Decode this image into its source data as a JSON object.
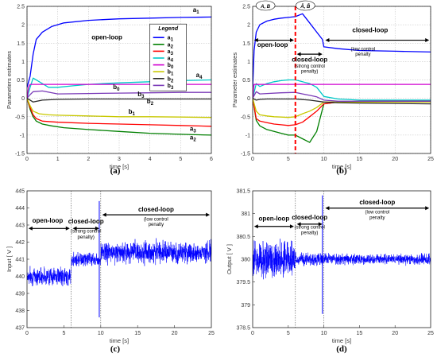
{
  "colors": {
    "a1": "#0000ff",
    "a2": "#007f00",
    "a3": "#ff0000",
    "a4": "#00c8c8",
    "b0": "#d000d0",
    "b1": "#c8c800",
    "b2": "#2a2a2a",
    "b3": "#7a3ab8",
    "signal": "#0000ff",
    "switch_line": "#ff0000"
  },
  "chart_data": [
    {
      "id": "a",
      "type": "line",
      "panel_label": "(a)",
      "xlabel": "time [s]",
      "ylabel": "Parameters estimates",
      "xlim": [
        0,
        6
      ],
      "ylim": [
        -1.5,
        2.5
      ],
      "xticks": [
        "0",
        "1",
        "2",
        "3",
        "4",
        "5",
        "6"
      ],
      "yticks": [
        "-1.5",
        "-1",
        "-0.5",
        "0",
        "0.5",
        "1",
        "1.5",
        "2",
        "2.5"
      ],
      "grid": true,
      "legend": {
        "title": "Legend",
        "placement": "top-right",
        "entries": [
          "a1",
          "a2",
          "a3",
          "a4",
          "b0",
          "b1",
          "b2",
          "b3"
        ]
      },
      "annotations": [
        {
          "text": "open-loop",
          "x": 2.6,
          "y": 1.6
        }
      ],
      "series": [
        {
          "name": "a1",
          "label": "a1",
          "label_at": [
            5.4,
            2.35
          ],
          "x": [
            0,
            0.1,
            0.2,
            0.3,
            0.5,
            0.8,
            1.2,
            2,
            3,
            4,
            5,
            6
          ],
          "y": [
            0.3,
            0.6,
            1.2,
            1.6,
            1.8,
            1.95,
            2.05,
            2.12,
            2.16,
            2.18,
            2.2,
            2.21
          ]
        },
        {
          "name": "a2",
          "label": "a2",
          "label_at": [
            5.3,
            -1.12
          ],
          "x": [
            0,
            0.1,
            0.2,
            0.3,
            0.5,
            0.8,
            1.2,
            2,
            3,
            4,
            5,
            6
          ],
          "y": [
            0,
            -0.3,
            -0.5,
            -0.62,
            -0.7,
            -0.75,
            -0.8,
            -0.85,
            -0.9,
            -0.95,
            -0.98,
            -1.0
          ]
        },
        {
          "name": "a3",
          "label": "a3",
          "label_at": [
            5.3,
            -0.88
          ],
          "x": [
            0,
            0.1,
            0.2,
            0.3,
            0.5,
            1,
            2,
            3,
            4,
            5,
            6
          ],
          "y": [
            0,
            -0.25,
            -0.45,
            -0.55,
            -0.62,
            -0.65,
            -0.68,
            -0.7,
            -0.72,
            -0.74,
            -0.76
          ]
        },
        {
          "name": "a4",
          "label": "a4",
          "label_at": [
            5.5,
            0.58
          ],
          "x": [
            0,
            0.1,
            0.2,
            0.4,
            0.7,
            1,
            1.5,
            2,
            3,
            4,
            5,
            6
          ],
          "y": [
            0,
            0.3,
            0.55,
            0.45,
            0.3,
            0.3,
            0.34,
            0.38,
            0.42,
            0.45,
            0.48,
            0.5
          ]
        },
        {
          "name": "b0",
          "label": "b0",
          "label_at": [
            2.8,
            0.25
          ],
          "x": [
            0,
            0.05,
            0.1,
            0.2,
            0.5,
            1,
            2,
            3,
            4,
            5,
            6
          ],
          "y": [
            0,
            0.3,
            0.38,
            0.38,
            0.38,
            0.38,
            0.38,
            0.38,
            0.38,
            0.38,
            0.38
          ]
        },
        {
          "name": "b1",
          "label": "b1",
          "label_at": [
            3.3,
            -0.42
          ],
          "x": [
            0,
            0.1,
            0.2,
            0.4,
            0.7,
            1,
            2,
            3,
            4,
            5,
            6
          ],
          "y": [
            0,
            -0.2,
            -0.35,
            -0.42,
            -0.45,
            -0.46,
            -0.48,
            -0.5,
            -0.5,
            -0.51,
            -0.52
          ]
        },
        {
          "name": "b2",
          "label": "b2",
          "label_at": [
            3.9,
            -0.14
          ],
          "x": [
            0,
            0.1,
            0.2,
            0.5,
            1,
            2,
            3,
            4,
            5,
            6
          ],
          "y": [
            0,
            -0.05,
            -0.1,
            -0.05,
            -0.03,
            -0.02,
            -0.02,
            -0.02,
            -0.02,
            -0.02
          ]
        },
        {
          "name": "b3",
          "label": "b3",
          "label_at": [
            3.6,
            0.06
          ],
          "x": [
            0,
            0.1,
            0.2,
            0.5,
            1,
            2,
            3,
            4,
            5,
            6
          ],
          "y": [
            0,
            0.1,
            0.18,
            0.2,
            0.12,
            0.13,
            0.14,
            0.15,
            0.16,
            0.16
          ]
        }
      ]
    },
    {
      "id": "b",
      "type": "line",
      "panel_label": "(b)",
      "xlabel": "time [s]",
      "ylabel": "Parameter estimates",
      "xlim": [
        0,
        25
      ],
      "ylim": [
        -1.5,
        2.5
      ],
      "xticks": [
        "0",
        "5",
        "10",
        "15",
        "20",
        "25"
      ],
      "yticks": [
        "-1.5",
        "-1",
        "-0.5",
        "0",
        "0.5",
        "1",
        "1.5",
        "2",
        "2.5"
      ],
      "grid": true,
      "switch_x": 6,
      "annotations": [
        {
          "text": "A, B",
          "x": 1.8,
          "y": 2.5,
          "style": "oval"
        },
        {
          "text": "Â, B̂",
          "x": 7.4,
          "y": 2.5,
          "style": "oval"
        },
        {
          "text": "open-loop",
          "x": 2.8,
          "y": 1.4,
          "style": "bold"
        },
        {
          "text": "closed-loop",
          "x": 8,
          "y": 1.0,
          "style": "bold"
        },
        {
          "text": "(strong control",
          "x": 8,
          "y": 0.84,
          "style": "small"
        },
        {
          "text": "penalty)",
          "x": 8,
          "y": 0.7,
          "style": "small"
        },
        {
          "text": "closed-loop",
          "x": 16.5,
          "y": 1.8,
          "style": "bold"
        },
        {
          "text": "(low control",
          "x": 15.5,
          "y": 1.3,
          "style": "small"
        },
        {
          "text": "penalty",
          "x": 15.5,
          "y": 1.16,
          "style": "small"
        }
      ],
      "series": [
        {
          "name": "a1",
          "x": [
            0,
            0.2,
            0.5,
            1,
            2,
            3,
            4,
            5,
            6,
            7,
            8,
            9,
            9.8,
            10,
            12,
            15,
            20,
            25
          ],
          "y": [
            0.3,
            1.3,
            1.8,
            2.0,
            2.1,
            2.15,
            2.18,
            2.2,
            2.22,
            2.3,
            2.05,
            1.8,
            1.6,
            1.4,
            1.35,
            1.3,
            1.28,
            1.26
          ]
        },
        {
          "name": "a2",
          "x": [
            0,
            0.5,
            1,
            2,
            3,
            4,
            5,
            6,
            7,
            8,
            9,
            10,
            12,
            15,
            20,
            25
          ],
          "y": [
            0,
            -0.6,
            -0.75,
            -0.85,
            -0.9,
            -0.95,
            -1.0,
            -1.0,
            -1.1,
            -1.2,
            -0.9,
            -0.15,
            -0.1,
            -0.1,
            -0.1,
            -0.1
          ]
        },
        {
          "name": "a3",
          "x": [
            0,
            0.5,
            1,
            2,
            3,
            4,
            5,
            6,
            7,
            8,
            9,
            10,
            12,
            15,
            20,
            25
          ],
          "y": [
            0,
            -0.55,
            -0.62,
            -0.66,
            -0.7,
            -0.72,
            -0.74,
            -0.72,
            -0.65,
            -0.5,
            -0.35,
            -0.15,
            -0.1,
            -0.08,
            -0.07,
            -0.06
          ]
        },
        {
          "name": "a4",
          "x": [
            0,
            0.5,
            1,
            2,
            3,
            4,
            5,
            6,
            7,
            8,
            9,
            10,
            12,
            15,
            20,
            25
          ],
          "y": [
            0,
            0.4,
            0.32,
            0.4,
            0.45,
            0.48,
            0.5,
            0.5,
            0.45,
            0.4,
            0.3,
            0.05,
            -0.02,
            -0.05,
            -0.05,
            -0.05
          ]
        },
        {
          "name": "b0",
          "x": [
            0,
            0.2,
            1,
            5,
            10,
            15,
            20,
            25
          ],
          "y": [
            0,
            0.38,
            0.38,
            0.38,
            0.38,
            0.38,
            0.38,
            0.38
          ]
        },
        {
          "name": "b1",
          "x": [
            0,
            0.5,
            1,
            2,
            3,
            4,
            5,
            6,
            7,
            8,
            9,
            10,
            12,
            15,
            20,
            25
          ],
          "y": [
            0,
            -0.35,
            -0.45,
            -0.48,
            -0.5,
            -0.51,
            -0.52,
            -0.5,
            -0.42,
            -0.35,
            -0.25,
            -0.1,
            -0.1,
            -0.1,
            -0.1,
            -0.1
          ]
        },
        {
          "name": "b2",
          "x": [
            0,
            0.5,
            1,
            2,
            4,
            6,
            8,
            10,
            12,
            15,
            20,
            25
          ],
          "y": [
            0,
            -0.05,
            -0.03,
            -0.02,
            -0.02,
            -0.02,
            -0.05,
            -0.1,
            -0.12,
            -0.13,
            -0.14,
            -0.15
          ]
        },
        {
          "name": "b3",
          "x": [
            0,
            0.5,
            1,
            2,
            4,
            6,
            7,
            8,
            9,
            10,
            12,
            15,
            20,
            25
          ],
          "y": [
            0,
            0.18,
            0.12,
            0.13,
            0.15,
            0.16,
            0.12,
            0.08,
            0.04,
            -0.05,
            -0.08,
            -0.08,
            -0.08,
            -0.08
          ]
        }
      ]
    },
    {
      "id": "c",
      "type": "line",
      "panel_label": "(c)",
      "xlabel": "time [s]",
      "ylabel": "Input [ V ]",
      "xlim": [
        0,
        25
      ],
      "ylim": [
        437,
        445
      ],
      "xticks": [
        "0",
        "5",
        "10",
        "15",
        "20",
        "25"
      ],
      "yticks": [
        "437",
        "438",
        "439",
        "440",
        "441",
        "442",
        "443",
        "444",
        "445"
      ],
      "grid": false,
      "switch_x": [
        6,
        10
      ],
      "annotations": [
        {
          "text": "open-loop",
          "x": 2.8,
          "y": 443.15,
          "style": "bold"
        },
        {
          "text": "closed-loop",
          "x": 8,
          "y": 443.1,
          "style": "bold"
        },
        {
          "text": "(strong control",
          "x": 8,
          "y": 442.55,
          "style": "small"
        },
        {
          "text": "penalty)",
          "x": 8,
          "y": 442.2,
          "style": "small"
        },
        {
          "text": "closed-loop",
          "x": 17.5,
          "y": 443.8,
          "style": "bold"
        },
        {
          "text": "(low control",
          "x": 17.5,
          "y": 443.25,
          "style": "small"
        },
        {
          "text": "penalty",
          "x": 17.5,
          "y": 442.95,
          "style": "small"
        }
      ],
      "series": [
        {
          "name": "u",
          "segments": [
            {
              "x0": 0,
              "x1": 6,
              "mean": 440.0,
              "amp": 0.45
            },
            {
              "x0": 6,
              "x1": 10,
              "mean": 441.0,
              "amp": 0.35
            },
            {
              "x0": 10,
              "x1": 25,
              "mean": 441.4,
              "amp": 0.55
            }
          ],
          "spikes": [
            {
              "x": 9.8,
              "min": 437.6,
              "max": 444.4
            }
          ]
        }
      ]
    },
    {
      "id": "d",
      "type": "line",
      "panel_label": "(d)",
      "xlabel": "time [s]",
      "ylabel": "Output [ V ]",
      "xlim": [
        0,
        25
      ],
      "ylim": [
        378.5,
        381.5
      ],
      "xticks": [
        "0",
        "5",
        "10",
        "15",
        "20",
        "25"
      ],
      "yticks": [
        "378.5",
        "379",
        "379.5",
        "380",
        "380.5",
        "381",
        "381.5"
      ],
      "grid": false,
      "switch_x": [
        6,
        10
      ],
      "annotations": [
        {
          "text": "open-loop",
          "x": 3.0,
          "y": 380.85,
          "style": "bold"
        },
        {
          "text": "closed-loop",
          "x": 8,
          "y": 380.87,
          "style": "bold"
        },
        {
          "text": "(strong control",
          "x": 8,
          "y": 380.67,
          "style": "small"
        },
        {
          "text": "penalty)",
          "x": 8,
          "y": 380.55,
          "style": "small"
        },
        {
          "text": "closed-loop",
          "x": 17.5,
          "y": 381.2,
          "style": "bold"
        },
        {
          "text": "(low control",
          "x": 17.5,
          "y": 381.0,
          "style": "small"
        },
        {
          "text": "penalty",
          "x": 17.5,
          "y": 380.88,
          "style": "small"
        }
      ],
      "series": [
        {
          "name": "y",
          "segments": [
            {
              "x0": 0,
              "x1": 6,
              "mean": 380.0,
              "amp": 0.35
            },
            {
              "x0": 6,
              "x1": 10,
              "mean": 380.0,
              "amp": 0.12
            },
            {
              "x0": 10,
              "x1": 25,
              "mean": 380.0,
              "amp": 0.1
            }
          ],
          "spikes": [
            {
              "x": 9.8,
              "min": 378.8,
              "max": 381.4
            }
          ]
        }
      ]
    }
  ]
}
